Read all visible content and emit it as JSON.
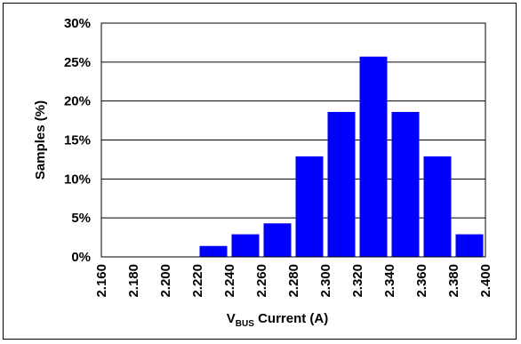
{
  "chart_data": {
    "type": "bar",
    "xlabel_main": "V",
    "xlabel_sub": "BUS",
    "xlabel_rest": " Current (A)",
    "ylabel": "Samples (%)",
    "categories": [
      "2.160",
      "2.180",
      "2.200",
      "2.220",
      "2.240",
      "2.260",
      "2.280",
      "2.300",
      "2.320",
      "2.340",
      "2.360",
      "2.380",
      "2.400"
    ],
    "values": [
      0,
      0,
      0,
      0,
      1.4,
      2.9,
      4.3,
      12.9,
      18.6,
      25.7,
      18.6,
      12.9,
      2.9
    ],
    "ylim": [
      0,
      30
    ],
    "yticks": [
      "0%",
      "5%",
      "10%",
      "15%",
      "20%",
      "25%",
      "30%"
    ],
    "ytick_values": [
      0,
      5,
      10,
      15,
      20,
      25,
      30
    ],
    "grid": true,
    "bar_color": "#0000FF"
  }
}
